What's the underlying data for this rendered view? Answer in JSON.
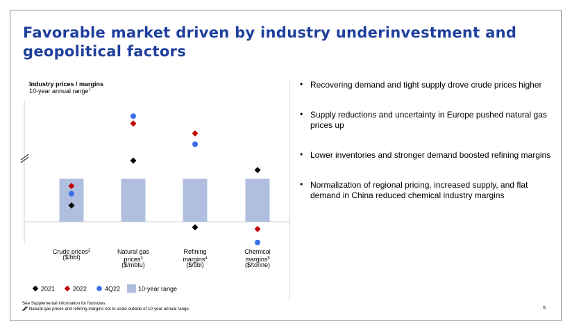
{
  "slide": {
    "title": "Favorable market driven by industry underinvestment and geopolitical factors",
    "page_number": "5"
  },
  "bullets": [
    "Recovering demand and tight supply drove crude prices higher",
    "Supply reductions and uncertainty in Europe pushed natural gas prices up",
    "Lower inventories and stronger demand boosted refining margins",
    "Normalization of regional pricing, increased supply, and flat demand in China reduced chemical industry margins"
  ],
  "footnotes": {
    "line1": "See Supplemental Information for footnotes.",
    "line2": "Natural gas prices and refining margins not to scale outside of 10-year annual range."
  },
  "colors": {
    "title": "#1f3f9c",
    "range_bar": "#b0bfdf",
    "y2021": "#000000",
    "y2022": "#c00000",
    "q4_22": "#3a6ee8"
  },
  "chart_data": {
    "type": "scatter",
    "title": "Industry prices / margins",
    "subtitle": "10-year annual range",
    "subtitle_sup": "1",
    "scale": "normalized to 10-year annual range (0 = low, 1 = high)",
    "ylim": [
      -0.55,
      2.6
    ],
    "axis_break_at": 1.5,
    "categories": [
      {
        "name": "crude",
        "lines": [
          "Crude prices",
          "($/bbl)"
        ],
        "sup": "2",
        "sup_line": 0
      },
      {
        "name": "gas",
        "lines": [
          "Natural gas",
          "prices",
          "($/mbtu)"
        ],
        "sup": "3",
        "sup_line": 1
      },
      {
        "name": "refining",
        "lines": [
          "Refining",
          "margins",
          "($/bbl)"
        ],
        "sup": "4",
        "sup_line": 1
      },
      {
        "name": "chemical",
        "lines": [
          "Chemical",
          "margins",
          "($/tonne)"
        ],
        "sup": "5",
        "sup_line": 1
      }
    ],
    "range": {
      "low": [
        0,
        0,
        0,
        0
      ],
      "high": [
        1,
        1,
        1,
        1
      ]
    },
    "series": [
      {
        "name": "2021",
        "marker": "diamond",
        "color": "#000000",
        "values": [
          0.38,
          1.42,
          -0.13,
          1.2
        ]
      },
      {
        "name": "2022",
        "marker": "diamond",
        "color": "#c00000",
        "values": [
          0.83,
          2.28,
          2.05,
          -0.17
        ]
      },
      {
        "name": "4Q22",
        "marker": "circle",
        "color": "#3a6ee8",
        "values": [
          0.65,
          2.45,
          1.8,
          -0.48
        ]
      }
    ],
    "legend": {
      "entries": [
        "2021",
        "2022",
        "4Q22"
      ],
      "range_label": "10-year range"
    }
  }
}
